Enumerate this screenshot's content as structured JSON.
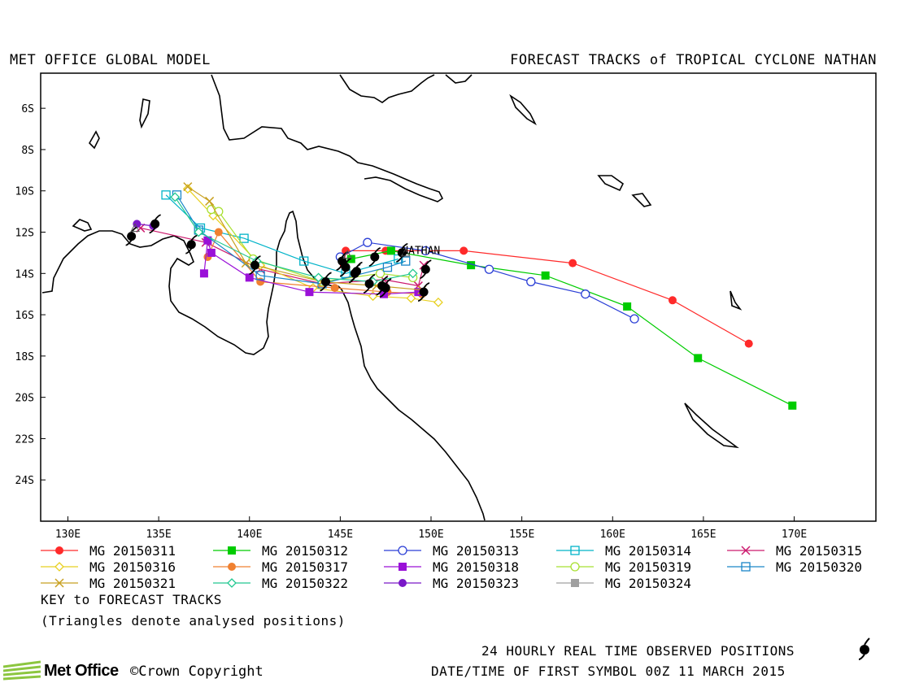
{
  "header": {
    "left": "MET OFFICE GLOBAL MODEL",
    "right": "FORECAST TRACKS of TROPICAL CYCLONE NATHAN"
  },
  "map": {
    "lon_range": [
      128.5,
      174.5
    ],
    "lat_range": [
      -26.0,
      -4.3
    ],
    "lat_ticks": [
      "6S",
      "8S",
      "10S",
      "12S",
      "14S",
      "16S",
      "18S",
      "20S",
      "22S",
      "24S"
    ],
    "lon_ticks": [
      "130E",
      "135E",
      "140E",
      "145E",
      "150E",
      "155E",
      "160E",
      "165E",
      "170E"
    ],
    "storm_label": "NATHAN"
  },
  "legend": {
    "items": [
      {
        "label": "MG 20150311",
        "color": "#ff2a2a",
        "marker": "filled-circle"
      },
      {
        "label": "MG 20150312",
        "color": "#00cc00",
        "marker": "filled-square"
      },
      {
        "label": "MG 20150313",
        "color": "#2b3fd6",
        "marker": "open-circle"
      },
      {
        "label": "MG 20150314",
        "color": "#00b3c8",
        "marker": "open-square"
      },
      {
        "label": "MG 20150315",
        "color": "#cc1a6e",
        "marker": "x"
      },
      {
        "label": "MG 20150316",
        "color": "#e8d020",
        "marker": "open-diamond"
      },
      {
        "label": "MG 20150317",
        "color": "#f08030",
        "marker": "filled-circle"
      },
      {
        "label": "MG 20150318",
        "color": "#9a10d8",
        "marker": "filled-square"
      },
      {
        "label": "MG 20150319",
        "color": "#a8e030",
        "marker": "open-circle"
      },
      {
        "label": "MG 20150320",
        "color": "#1a86c8",
        "marker": "open-square"
      },
      {
        "label": "MG 20150321",
        "color": "#c8a020",
        "marker": "x"
      },
      {
        "label": "MG 20150322",
        "color": "#20c890",
        "marker": "open-diamond"
      },
      {
        "label": "MG 20150323",
        "color": "#7a18c8",
        "marker": "filled-circle"
      },
      {
        "label": "MG 20150324",
        "color": "#a0a0a0",
        "marker": "filled-square"
      }
    ],
    "key_title": "KEY to FORECAST TRACKS",
    "key_note": "(Triangles denote analysed positions)"
  },
  "footer": {
    "observed": "24 HOURLY REAL TIME OBSERVED POSITIONS",
    "datetime": "DATE/TIME OF FIRST SYMBOL 00Z 11 MARCH 2015",
    "logo_text": "Met Office",
    "copyright": "©Crown Copyright"
  },
  "tracks": [
    {
      "color": "#ff2a2a",
      "marker": "filled-circle",
      "points": [
        [
          167.5,
          -17.4
        ],
        [
          163.3,
          -15.3
        ],
        [
          157.8,
          -13.5
        ],
        [
          151.8,
          -12.9
        ],
        [
          147.5,
          -12.9
        ],
        [
          145.3,
          -12.9
        ],
        [
          145.2,
          -13.6
        ]
      ]
    },
    {
      "color": "#00cc00",
      "marker": "filled-square",
      "points": [
        [
          169.9,
          -20.4
        ],
        [
          164.7,
          -18.1
        ],
        [
          160.8,
          -15.6
        ],
        [
          156.3,
          -14.1
        ],
        [
          152.2,
          -13.6
        ],
        [
          147.8,
          -12.9
        ],
        [
          145.6,
          -13.3
        ]
      ]
    },
    {
      "color": "#2b3fd6",
      "marker": "open-circle",
      "points": [
        [
          161.2,
          -16.2
        ],
        [
          158.5,
          -15.0
        ],
        [
          155.5,
          -14.4
        ],
        [
          153.2,
          -13.8
        ],
        [
          149.7,
          -12.9
        ],
        [
          146.5,
          -12.5
        ],
        [
          145.0,
          -13.2
        ]
      ]
    },
    {
      "color": "#00b3c8",
      "marker": "open-square",
      "points": [
        [
          135.4,
          -10.2
        ],
        [
          137.3,
          -11.8
        ],
        [
          139.7,
          -12.3
        ],
        [
          143.0,
          -13.4
        ],
        [
          145.3,
          -14.0
        ],
        [
          148.2,
          -13.3
        ]
      ]
    },
    {
      "color": "#cc1a6e",
      "marker": "x",
      "points": [
        [
          134.0,
          -11.8
        ],
        [
          137.6,
          -12.5
        ],
        [
          140.6,
          -13.8
        ],
        [
          144.0,
          -14.5
        ],
        [
          147.4,
          -14.3
        ],
        [
          149.3,
          -14.6
        ],
        [
          149.6,
          -13.6
        ]
      ]
    },
    {
      "color": "#e8d020",
      "marker": "open-diamond",
      "points": [
        [
          136.6,
          -9.9
        ],
        [
          138.0,
          -11.2
        ],
        [
          140.6,
          -13.6
        ],
        [
          143.5,
          -14.7
        ],
        [
          146.8,
          -15.1
        ],
        [
          148.9,
          -15.2
        ],
        [
          150.4,
          -15.4
        ]
      ]
    },
    {
      "color": "#f08030",
      "marker": "filled-circle",
      "points": [
        [
          137.7,
          -13.2
        ],
        [
          138.3,
          -12.0
        ],
        [
          140.6,
          -14.4
        ],
        [
          144.7,
          -14.7
        ],
        [
          147.6,
          -14.9
        ],
        [
          149.5,
          -15.0
        ]
      ]
    },
    {
      "color": "#9a10d8",
      "marker": "filled-square",
      "points": [
        [
          137.5,
          -14.0
        ],
        [
          137.7,
          -12.4
        ],
        [
          137.9,
          -13.0
        ],
        [
          140.0,
          -14.2
        ],
        [
          143.3,
          -14.9
        ],
        [
          147.4,
          -15.0
        ],
        [
          149.3,
          -14.9
        ]
      ]
    },
    {
      "color": "#a8e030",
      "marker": "open-circle",
      "points": [
        [
          137.9,
          -10.9
        ],
        [
          138.3,
          -11.0
        ],
        [
          140.2,
          -13.3
        ],
        [
          144.0,
          -14.4
        ],
        [
          147.2,
          -14.0
        ],
        [
          149.0,
          -14.2
        ]
      ]
    },
    {
      "color": "#1a86c8",
      "marker": "open-square",
      "points": [
        [
          136.0,
          -10.2
        ],
        [
          137.2,
          -11.9
        ],
        [
          140.6,
          -14.1
        ],
        [
          144.0,
          -14.5
        ],
        [
          147.6,
          -13.7
        ],
        [
          148.6,
          -13.4
        ]
      ]
    },
    {
      "color": "#c8a020",
      "marker": "x",
      "points": [
        [
          136.6,
          -9.8
        ],
        [
          137.8,
          -10.5
        ],
        [
          139.8,
          -13.5
        ],
        [
          144.0,
          -14.4
        ],
        [
          147.0,
          -14.6
        ],
        [
          149.5,
          -14.8
        ]
      ]
    },
    {
      "color": "#20c890",
      "marker": "open-diamond",
      "points": [
        [
          135.9,
          -10.3
        ],
        [
          137.2,
          -12.0
        ],
        [
          140.4,
          -13.4
        ],
        [
          143.8,
          -14.2
        ],
        [
          146.8,
          -14.4
        ],
        [
          149.0,
          -14.0
        ]
      ]
    },
    {
      "color": "#7a18c8",
      "marker": "filled-circle",
      "points": [
        [
          133.8,
          -11.6
        ],
        [
          134.7,
          -11.7
        ]
      ]
    }
  ],
  "observed_positions": [
    [
      133.5,
      -12.2
    ],
    [
      134.8,
      -11.6
    ],
    [
      136.8,
      -12.6
    ],
    [
      140.3,
      -13.6
    ],
    [
      144.2,
      -14.4
    ],
    [
      145.1,
      -13.4
    ],
    [
      145.8,
      -14.0
    ],
    [
      146.6,
      -14.5
    ],
    [
      147.3,
      -14.6
    ],
    [
      147.5,
      -14.7
    ],
    [
      148.4,
      -13.0
    ],
    [
      149.7,
      -13.8
    ],
    [
      149.6,
      -14.9
    ],
    [
      146.9,
      -13.2
    ],
    [
      145.9,
      -13.9
    ],
    [
      145.3,
      -13.7
    ]
  ],
  "analysed_positions": [
    [
      133.7,
      -11.8
    ],
    [
      145.4,
      -13.1
    ],
    [
      148.6,
      -13.0
    ]
  ]
}
